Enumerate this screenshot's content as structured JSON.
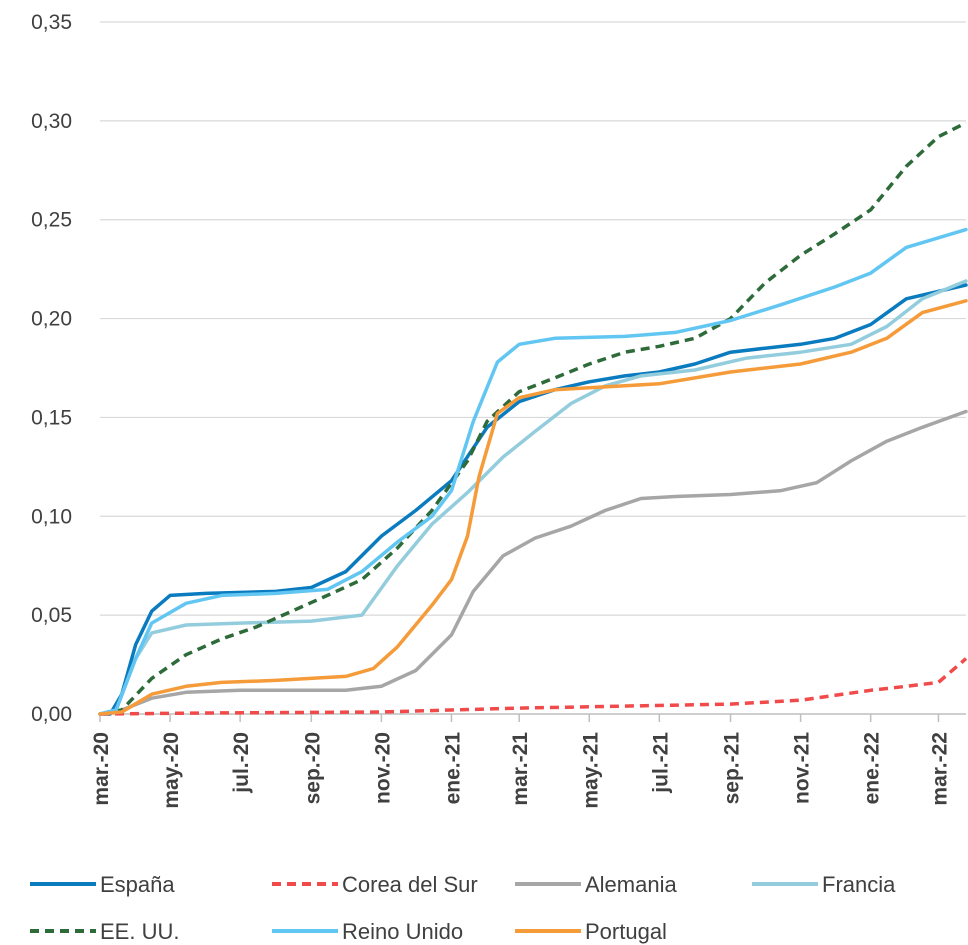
{
  "chart_data": {
    "type": "line",
    "title": "",
    "xlabel": "",
    "ylabel": "",
    "ylim": [
      0,
      0.35
    ],
    "y_ticks": [
      "0,00",
      "0,05",
      "0,10",
      "0,15",
      "0,20",
      "0,25",
      "0,30",
      "0,35"
    ],
    "x_ticks": [
      "mar.-20",
      "may.-20",
      "jul.-20",
      "sep.-20",
      "nov.-20",
      "ene.-21",
      "mar.-21",
      "may.-21",
      "jul.-21",
      "sep.-21",
      "nov.-21",
      "ene.-22",
      "mar.-22"
    ],
    "x_tick_dates": [
      "2020-03-01",
      "2020-05-01",
      "2020-07-01",
      "2020-09-01",
      "2020-11-01",
      "2021-01-01",
      "2021-03-01",
      "2021-05-01",
      "2021-07-01",
      "2021-09-01",
      "2021-11-01",
      "2022-01-01",
      "2022-03-01"
    ],
    "x_range": [
      "2020-03-01",
      "2022-03-25"
    ],
    "grid": "horizontal",
    "legend_position": "bottom",
    "series": [
      {
        "name": "España",
        "color": "#0a7bbf",
        "dash": "solid",
        "points": [
          [
            "2020-03-01",
            0
          ],
          [
            "2020-03-10",
            0
          ],
          [
            "2020-03-20",
            0.01
          ],
          [
            "2020-04-01",
            0.035
          ],
          [
            "2020-04-15",
            0.052
          ],
          [
            "2020-05-01",
            0.06
          ],
          [
            "2020-06-01",
            0.061
          ],
          [
            "2020-08-01",
            0.062
          ],
          [
            "2020-09-01",
            0.064
          ],
          [
            "2020-10-01",
            0.072
          ],
          [
            "2020-11-01",
            0.09
          ],
          [
            "2020-12-01",
            0.103
          ],
          [
            "2021-01-01",
            0.118
          ],
          [
            "2021-02-01",
            0.145
          ],
          [
            "2021-03-01",
            0.158
          ],
          [
            "2021-04-01",
            0.164
          ],
          [
            "2021-05-01",
            0.168
          ],
          [
            "2021-06-01",
            0.171
          ],
          [
            "2021-07-01",
            0.173
          ],
          [
            "2021-08-01",
            0.177
          ],
          [
            "2021-09-01",
            0.183
          ],
          [
            "2021-10-01",
            0.185
          ],
          [
            "2021-11-01",
            0.187
          ],
          [
            "2021-12-01",
            0.19
          ],
          [
            "2022-01-01",
            0.197
          ],
          [
            "2022-02-01",
            0.21
          ],
          [
            "2022-03-25",
            0.217
          ]
        ]
      },
      {
        "name": "Corea del Sur",
        "color": "#f04a4a",
        "dash": "dashed",
        "points": [
          [
            "2020-03-01",
            0
          ],
          [
            "2020-06-01",
            0.0005
          ],
          [
            "2020-11-01",
            0.001
          ],
          [
            "2021-01-01",
            0.002
          ],
          [
            "2021-03-01",
            0.003
          ],
          [
            "2021-06-01",
            0.004
          ],
          [
            "2021-09-01",
            0.005
          ],
          [
            "2021-11-01",
            0.007
          ],
          [
            "2022-01-01",
            0.012
          ],
          [
            "2022-02-01",
            0.014
          ],
          [
            "2022-03-01",
            0.016
          ],
          [
            "2022-03-25",
            0.028
          ]
        ]
      },
      {
        "name": "Alemania",
        "color": "#a6a6a6",
        "dash": "solid",
        "points": [
          [
            "2020-03-01",
            0
          ],
          [
            "2020-03-20",
            0.002
          ],
          [
            "2020-04-15",
            0.008
          ],
          [
            "2020-05-15",
            0.011
          ],
          [
            "2020-07-01",
            0.012
          ],
          [
            "2020-10-01",
            0.012
          ],
          [
            "2020-11-01",
            0.014
          ],
          [
            "2020-12-01",
            0.022
          ],
          [
            "2021-01-01",
            0.04
          ],
          [
            "2021-01-20",
            0.062
          ],
          [
            "2021-02-15",
            0.08
          ],
          [
            "2021-03-15",
            0.089
          ],
          [
            "2021-04-15",
            0.095
          ],
          [
            "2021-05-15",
            0.103
          ],
          [
            "2021-06-15",
            0.109
          ],
          [
            "2021-07-15",
            0.11
          ],
          [
            "2021-09-01",
            0.111
          ],
          [
            "2021-10-15",
            0.113
          ],
          [
            "2021-11-15",
            0.117
          ],
          [
            "2021-12-15",
            0.128
          ],
          [
            "2022-01-15",
            0.138
          ],
          [
            "2022-02-15",
            0.145
          ],
          [
            "2022-03-25",
            0.153
          ]
        ]
      },
      {
        "name": "Francia",
        "color": "#93cddd",
        "dash": "solid",
        "points": [
          [
            "2020-03-01",
            0
          ],
          [
            "2020-03-15",
            0.002
          ],
          [
            "2020-04-01",
            0.028
          ],
          [
            "2020-04-15",
            0.041
          ],
          [
            "2020-05-15",
            0.045
          ],
          [
            "2020-07-01",
            0.046
          ],
          [
            "2020-09-01",
            0.047
          ],
          [
            "2020-10-15",
            0.05
          ],
          [
            "2020-11-15",
            0.075
          ],
          [
            "2020-12-15",
            0.096
          ],
          [
            "2021-01-15",
            0.112
          ],
          [
            "2021-02-15",
            0.13
          ],
          [
            "2021-03-15",
            0.143
          ],
          [
            "2021-04-15",
            0.157
          ],
          [
            "2021-05-15",
            0.166
          ],
          [
            "2021-06-15",
            0.171
          ],
          [
            "2021-08-01",
            0.174
          ],
          [
            "2021-09-15",
            0.18
          ],
          [
            "2021-11-01",
            0.183
          ],
          [
            "2021-12-15",
            0.187
          ],
          [
            "2022-01-15",
            0.196
          ],
          [
            "2022-02-15",
            0.21
          ],
          [
            "2022-03-25",
            0.219
          ]
        ]
      },
      {
        "name": "EE. UU.",
        "color": "#2e6b3a",
        "dash": "dashed",
        "points": [
          [
            "2020-03-01",
            0
          ],
          [
            "2020-03-20",
            0.002
          ],
          [
            "2020-04-15",
            0.018
          ],
          [
            "2020-05-15",
            0.03
          ],
          [
            "2020-06-15",
            0.038
          ],
          [
            "2020-07-15",
            0.044
          ],
          [
            "2020-08-15",
            0.052
          ],
          [
            "2020-09-15",
            0.06
          ],
          [
            "2020-10-15",
            0.068
          ],
          [
            "2020-11-15",
            0.084
          ],
          [
            "2020-12-15",
            0.103
          ],
          [
            "2021-01-15",
            0.128
          ],
          [
            "2021-02-01",
            0.148
          ],
          [
            "2021-03-01",
            0.163
          ],
          [
            "2021-04-01",
            0.17
          ],
          [
            "2021-05-01",
            0.177
          ],
          [
            "2021-06-01",
            0.183
          ],
          [
            "2021-07-01",
            0.186
          ],
          [
            "2021-08-01",
            0.19
          ],
          [
            "2021-09-01",
            0.2
          ],
          [
            "2021-10-01",
            0.218
          ],
          [
            "2021-11-01",
            0.232
          ],
          [
            "2021-12-01",
            0.243
          ],
          [
            "2022-01-01",
            0.255
          ],
          [
            "2022-02-01",
            0.277
          ],
          [
            "2022-03-01",
            0.292
          ],
          [
            "2022-03-25",
            0.299
          ]
        ]
      },
      {
        "name": "Reino Unido",
        "color": "#62c6f2",
        "dash": "solid",
        "points": [
          [
            "2020-03-01",
            0
          ],
          [
            "2020-03-15",
            0.002
          ],
          [
            "2020-04-01",
            0.028
          ],
          [
            "2020-04-15",
            0.046
          ],
          [
            "2020-05-15",
            0.056
          ],
          [
            "2020-06-15",
            0.06
          ],
          [
            "2020-08-01",
            0.061
          ],
          [
            "2020-09-15",
            0.063
          ],
          [
            "2020-10-15",
            0.072
          ],
          [
            "2020-11-15",
            0.087
          ],
          [
            "2020-12-15",
            0.1
          ],
          [
            "2021-01-01",
            0.113
          ],
          [
            "2021-01-20",
            0.148
          ],
          [
            "2021-02-10",
            0.178
          ],
          [
            "2021-03-01",
            0.187
          ],
          [
            "2021-04-01",
            0.19
          ],
          [
            "2021-06-01",
            0.191
          ],
          [
            "2021-07-15",
            0.193
          ],
          [
            "2021-09-01",
            0.199
          ],
          [
            "2021-10-15",
            0.207
          ],
          [
            "2021-12-01",
            0.216
          ],
          [
            "2022-01-01",
            0.223
          ],
          [
            "2022-02-01",
            0.236
          ],
          [
            "2022-03-25",
            0.245
          ]
        ]
      },
      {
        "name": "Portugal",
        "color": "#f59b3a",
        "dash": "solid",
        "points": [
          [
            "2020-03-01",
            0
          ],
          [
            "2020-03-20",
            0.001
          ],
          [
            "2020-04-15",
            0.01
          ],
          [
            "2020-05-15",
            0.014
          ],
          [
            "2020-06-15",
            0.016
          ],
          [
            "2020-08-01",
            0.017
          ],
          [
            "2020-10-01",
            0.019
          ],
          [
            "2020-10-25",
            0.023
          ],
          [
            "2020-11-15",
            0.034
          ],
          [
            "2020-12-15",
            0.055
          ],
          [
            "2021-01-01",
            0.068
          ],
          [
            "2021-01-15",
            0.09
          ],
          [
            "2021-01-25",
            0.12
          ],
          [
            "2021-02-10",
            0.152
          ],
          [
            "2021-03-01",
            0.16
          ],
          [
            "2021-04-01",
            0.164
          ],
          [
            "2021-05-01",
            0.165
          ],
          [
            "2021-07-01",
            0.167
          ],
          [
            "2021-09-01",
            0.173
          ],
          [
            "2021-11-01",
            0.177
          ],
          [
            "2021-12-15",
            0.183
          ],
          [
            "2022-01-15",
            0.19
          ],
          [
            "2022-02-15",
            0.203
          ],
          [
            "2022-03-25",
            0.209
          ]
        ]
      }
    ]
  }
}
